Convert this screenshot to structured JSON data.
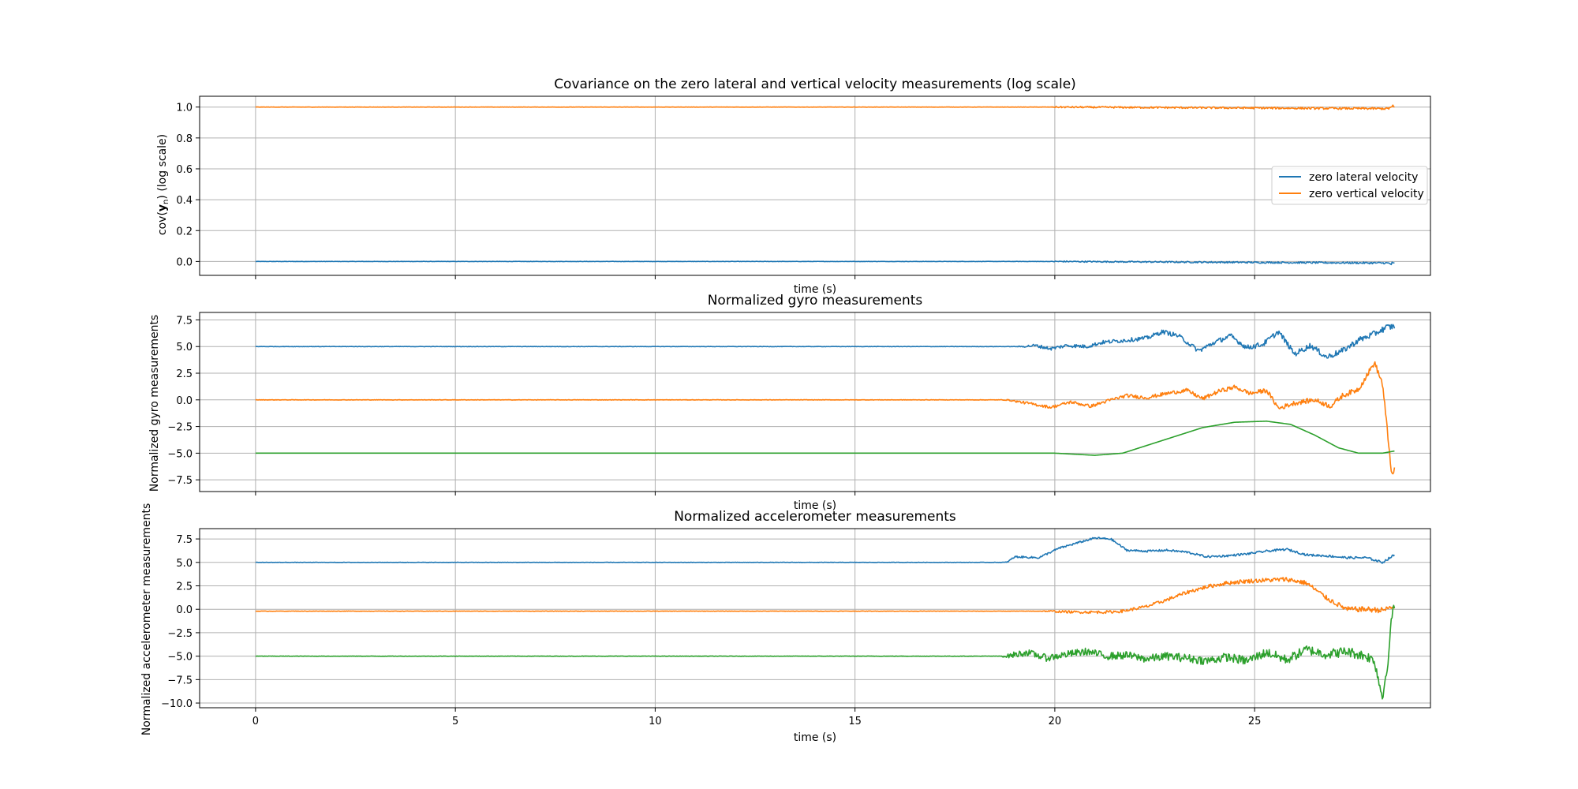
{
  "chart_data": [
    {
      "type": "line",
      "title": "Covariance on the zero lateral and vertical velocity measurements (log scale)",
      "xlabel": "time (s)",
      "ylabel_prefix": "cov(",
      "ylabel_bold": "y",
      "ylabel_sub": "n",
      "ylabel_suffix": ") (log scale)",
      "xlim": [
        -1.4,
        29.4
      ],
      "ylim": [
        -0.09,
        1.07
      ],
      "xticks": [
        0,
        5,
        10,
        15,
        20,
        25
      ],
      "xtick_labels_visible": false,
      "yticks": [
        0.0,
        0.2,
        0.4,
        0.6,
        0.8,
        1.0
      ],
      "ytick_labels": [
        "0.0",
        "0.2",
        "0.4",
        "0.6",
        "0.8",
        "1.0"
      ],
      "grid": true,
      "legend": "center-right",
      "series": [
        {
          "name": "zero lateral velocity",
          "color": "#1f77b4",
          "points": [
            [
              0,
              0.0
            ],
            [
              20,
              0.0
            ],
            [
              28.3,
              -0.01
            ],
            [
              28.5,
              -0.02
            ]
          ],
          "noise": [
            [
              0,
              0.001
            ],
            [
              19.9,
              0.001
            ],
            [
              20,
              0.004
            ],
            [
              28.3,
              0.006
            ],
            [
              28.5,
              0.02
            ]
          ]
        },
        {
          "name": "zero vertical velocity",
          "color": "#ff7f0e",
          "points": [
            [
              0,
              1.0
            ],
            [
              20,
              1.0
            ],
            [
              28.3,
              0.99
            ],
            [
              28.5,
              1.0
            ]
          ],
          "noise": [
            [
              0,
              0.001
            ],
            [
              19.9,
              0.001
            ],
            [
              20,
              0.005
            ],
            [
              28.3,
              0.007
            ],
            [
              28.5,
              0.02
            ]
          ]
        }
      ]
    },
    {
      "type": "line",
      "title": "Normalized gyro measurements",
      "xlabel": "time (s)",
      "ylabel": "Normalized gyro measurements",
      "xlim": [
        -1.4,
        29.4
      ],
      "ylim": [
        -8.6,
        8.2
      ],
      "xticks": [
        0,
        5,
        10,
        15,
        20,
        25
      ],
      "xtick_labels_visible": false,
      "yticks": [
        -7.5,
        -5.0,
        -2.5,
        0.0,
        2.5,
        5.0,
        7.5
      ],
      "ytick_labels": [
        "−7.5",
        "−5.0",
        "−2.5",
        "0.0",
        "2.5",
        "5.0",
        "7.5"
      ],
      "grid": true,
      "series": [
        {
          "color": "#1f77b4",
          "points": [
            [
              0,
              5.0
            ],
            [
              19.2,
              5.0
            ],
            [
              19.5,
              5.1
            ],
            [
              19.9,
              4.8
            ],
            [
              20.3,
              5.1
            ],
            [
              20.8,
              5.0
            ],
            [
              21.2,
              5.4
            ],
            [
              21.8,
              5.6
            ],
            [
              22.3,
              5.8
            ],
            [
              22.7,
              6.4
            ],
            [
              23.1,
              6.0
            ],
            [
              23.6,
              4.6
            ],
            [
              24.0,
              5.4
            ],
            [
              24.4,
              6.0
            ],
            [
              24.8,
              4.9
            ],
            [
              25.2,
              5.2
            ],
            [
              25.6,
              6.4
            ],
            [
              26.0,
              4.3
            ],
            [
              26.4,
              5.1
            ],
            [
              26.8,
              4.0
            ],
            [
              27.2,
              4.6
            ],
            [
              27.6,
              5.6
            ],
            [
              28.0,
              6.2
            ],
            [
              28.3,
              6.8
            ],
            [
              28.5,
              6.9
            ]
          ],
          "noise": [
            [
              0,
              0.02
            ],
            [
              19.0,
              0.02
            ],
            [
              19.5,
              0.15
            ],
            [
              28.5,
              0.3
            ]
          ]
        },
        {
          "color": "#ff7f0e",
          "points": [
            [
              0,
              0.0
            ],
            [
              18.8,
              0.0
            ],
            [
              19.3,
              -0.3
            ],
            [
              19.9,
              -0.7
            ],
            [
              20.4,
              -0.2
            ],
            [
              20.9,
              -0.6
            ],
            [
              21.4,
              0.0
            ],
            [
              21.8,
              0.4
            ],
            [
              22.3,
              0.2
            ],
            [
              22.8,
              0.6
            ],
            [
              23.3,
              0.9
            ],
            [
              23.7,
              0.1
            ],
            [
              24.1,
              0.8
            ],
            [
              24.5,
              1.2
            ],
            [
              24.9,
              0.6
            ],
            [
              25.3,
              0.9
            ],
            [
              25.6,
              -0.8
            ],
            [
              26.0,
              -0.3
            ],
            [
              26.5,
              0.0
            ],
            [
              26.9,
              -0.6
            ],
            [
              27.2,
              0.4
            ],
            [
              27.6,
              1.0
            ],
            [
              28.0,
              3.5
            ],
            [
              28.2,
              1.5
            ],
            [
              28.35,
              -4.0
            ],
            [
              28.45,
              -7.5
            ],
            [
              28.5,
              -6.5
            ]
          ],
          "noise": [
            [
              0,
              0.02
            ],
            [
              18.6,
              0.02
            ],
            [
              19.2,
              0.12
            ],
            [
              28.0,
              0.25
            ],
            [
              28.5,
              0.4
            ]
          ]
        },
        {
          "color": "#2ca02c",
          "points": [
            [
              0,
              -5.0
            ],
            [
              20,
              -5.0
            ],
            [
              21.0,
              -5.2
            ],
            [
              21.7,
              -5.0
            ],
            [
              22.7,
              -3.8
            ],
            [
              23.7,
              -2.6
            ],
            [
              24.5,
              -2.1
            ],
            [
              25.3,
              -2.0
            ],
            [
              25.9,
              -2.3
            ],
            [
              26.5,
              -3.3
            ],
            [
              27.1,
              -4.5
            ],
            [
              27.6,
              -5.0
            ],
            [
              28.2,
              -5.0
            ],
            [
              28.5,
              -4.8
            ]
          ],
          "noise": [
            [
              0,
              0.0
            ],
            [
              28.5,
              0.0
            ]
          ]
        }
      ]
    },
    {
      "type": "line",
      "title": "Normalized accelerometer measurements",
      "xlabel": "time (s)",
      "ylabel": "Normalized accelerometer measurements",
      "xlim": [
        -1.4,
        29.4
      ],
      "ylim": [
        -10.5,
        8.6
      ],
      "xticks": [
        0,
        5,
        10,
        15,
        20,
        25
      ],
      "xtick_labels_visible": true,
      "xtick_labels": [
        "0",
        "5",
        "10",
        "15",
        "20",
        "25"
      ],
      "yticks": [
        -10.0,
        -7.5,
        -5.0,
        -2.5,
        0.0,
        2.5,
        5.0,
        7.5
      ],
      "ytick_labels": [
        "−10.0",
        "−7.5",
        "−5.0",
        "−2.5",
        "0.0",
        "2.5",
        "5.0",
        "7.5"
      ],
      "grid": true,
      "series": [
        {
          "color": "#1f77b4",
          "points": [
            [
              0,
              5.0
            ],
            [
              18.8,
              5.0
            ],
            [
              19.0,
              5.6
            ],
            [
              19.6,
              5.5
            ],
            [
              20.1,
              6.5
            ],
            [
              20.5,
              7.0
            ],
            [
              21.0,
              7.6
            ],
            [
              21.4,
              7.5
            ],
            [
              21.8,
              6.3
            ],
            [
              22.3,
              6.2
            ],
            [
              22.8,
              6.3
            ],
            [
              23.3,
              6.1
            ],
            [
              23.8,
              5.6
            ],
            [
              24.3,
              5.7
            ],
            [
              24.8,
              5.9
            ],
            [
              25.3,
              6.2
            ],
            [
              25.8,
              6.4
            ],
            [
              26.3,
              5.8
            ],
            [
              26.8,
              5.7
            ],
            [
              27.3,
              5.5
            ],
            [
              27.8,
              5.5
            ],
            [
              28.2,
              5.0
            ],
            [
              28.5,
              5.8
            ]
          ],
          "noise": [
            [
              0,
              0.02
            ],
            [
              18.6,
              0.02
            ],
            [
              19.0,
              0.1
            ],
            [
              28.5,
              0.12
            ]
          ]
        },
        {
          "color": "#ff7f0e",
          "points": [
            [
              0,
              -0.2
            ],
            [
              19.8,
              -0.2
            ],
            [
              20.5,
              -0.3
            ],
            [
              21.3,
              -0.3
            ],
            [
              21.7,
              -0.2
            ],
            [
              22.3,
              0.3
            ],
            [
              22.8,
              1.0
            ],
            [
              23.3,
              1.8
            ],
            [
              23.8,
              2.4
            ],
            [
              24.3,
              2.8
            ],
            [
              24.8,
              3.0
            ],
            [
              25.3,
              3.1
            ],
            [
              25.8,
              3.2
            ],
            [
              26.3,
              2.8
            ],
            [
              26.8,
              1.2
            ],
            [
              27.3,
              0.0
            ],
            [
              27.8,
              0.0
            ],
            [
              28.2,
              -0.1
            ],
            [
              28.5,
              0.3
            ]
          ],
          "noise": [
            [
              0,
              0.02
            ],
            [
              19.6,
              0.02
            ],
            [
              20.0,
              0.12
            ],
            [
              28.5,
              0.3
            ]
          ]
        },
        {
          "color": "#2ca02c",
          "points": [
            [
              0,
              -5.0
            ],
            [
              18.8,
              -5.0
            ],
            [
              19.3,
              -4.6
            ],
            [
              19.8,
              -5.2
            ],
            [
              20.3,
              -4.8
            ],
            [
              20.8,
              -4.5
            ],
            [
              21.3,
              -5.0
            ],
            [
              21.8,
              -4.9
            ],
            [
              22.3,
              -5.3
            ],
            [
              22.8,
              -5.0
            ],
            [
              23.3,
              -5.2
            ],
            [
              23.8,
              -5.5
            ],
            [
              24.3,
              -5.1
            ],
            [
              24.8,
              -5.5
            ],
            [
              25.3,
              -4.6
            ],
            [
              25.8,
              -5.4
            ],
            [
              26.3,
              -4.3
            ],
            [
              26.8,
              -4.8
            ],
            [
              27.3,
              -4.5
            ],
            [
              27.8,
              -5.0
            ],
            [
              28.0,
              -5.5
            ],
            [
              28.2,
              -9.5
            ],
            [
              28.35,
              -5.0
            ],
            [
              28.45,
              0.0
            ],
            [
              28.5,
              0.5
            ]
          ],
          "noise": [
            [
              0,
              0.02
            ],
            [
              18.6,
              0.02
            ],
            [
              19.0,
              0.35
            ],
            [
              28.0,
              0.55
            ],
            [
              28.5,
              0.6
            ]
          ]
        }
      ]
    }
  ]
}
